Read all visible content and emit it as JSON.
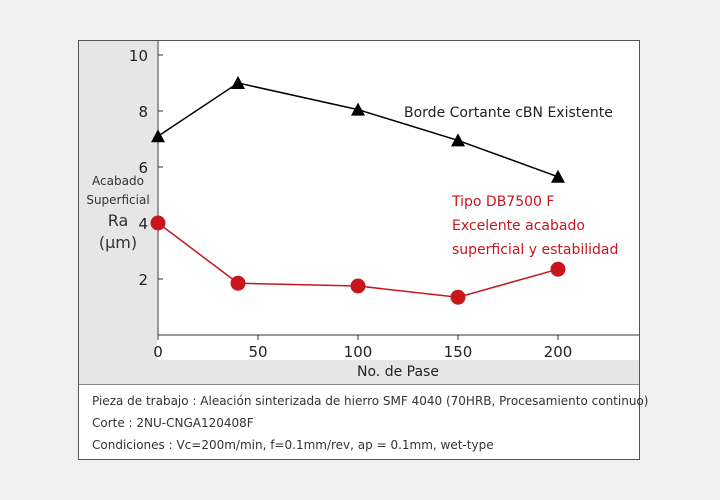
{
  "chart_data": {
    "type": "line",
    "x": [
      0,
      40,
      100,
      150,
      200
    ],
    "xlim": [
      0,
      240
    ],
    "ylim": [
      0,
      10.5
    ],
    "x_ticks": [
      "0",
      "50",
      "100",
      "150",
      "200"
    ],
    "x_tick_values": [
      0,
      50,
      100,
      150,
      200
    ],
    "y_ticks": [
      "2",
      "4",
      "6",
      "8",
      "10"
    ],
    "y_tick_values": [
      2,
      4,
      6,
      8,
      10
    ],
    "xlabel": "No. de Pase",
    "ylabel_lines": [
      "Acabado",
      "Superficial",
      "Ra",
      "(μm)"
    ],
    "grid": false,
    "series": [
      {
        "name": "Borde Cortante cBN Existente",
        "marker": "triangle",
        "color": "#000000",
        "x": [
          0,
          40,
          100,
          150,
          200
        ],
        "values": [
          7.1,
          9.0,
          8.05,
          6.95,
          5.65
        ]
      },
      {
        "name": "Tipo DB7500 F",
        "marker": "circle",
        "color": "#c8161d",
        "x": [
          0,
          40,
          100,
          150,
          200
        ],
        "values": [
          4.0,
          1.85,
          1.75,
          1.35,
          2.35
        ]
      }
    ],
    "annotations": {
      "existing": "Borde Cortante cBN Existente",
      "db7500": [
        "Tipo DB7500 F",
        "Excelente acabado",
        "superficial y estabilidad"
      ]
    }
  },
  "notes": [
    "Pieza de trabajo : Aleación sinterizada de hierro SMF 4040 (70HRB, Procesamiento continuo)",
    "Corte : 2NU-CNGA120408F",
    "Condiciones : Vc=200m/min, f=0.1mm/rev, ap = 0.1mm, wet-type"
  ],
  "colors": {
    "existing": "#000000",
    "db7500": "#c8161d",
    "label_band": "#e6e6e6"
  }
}
